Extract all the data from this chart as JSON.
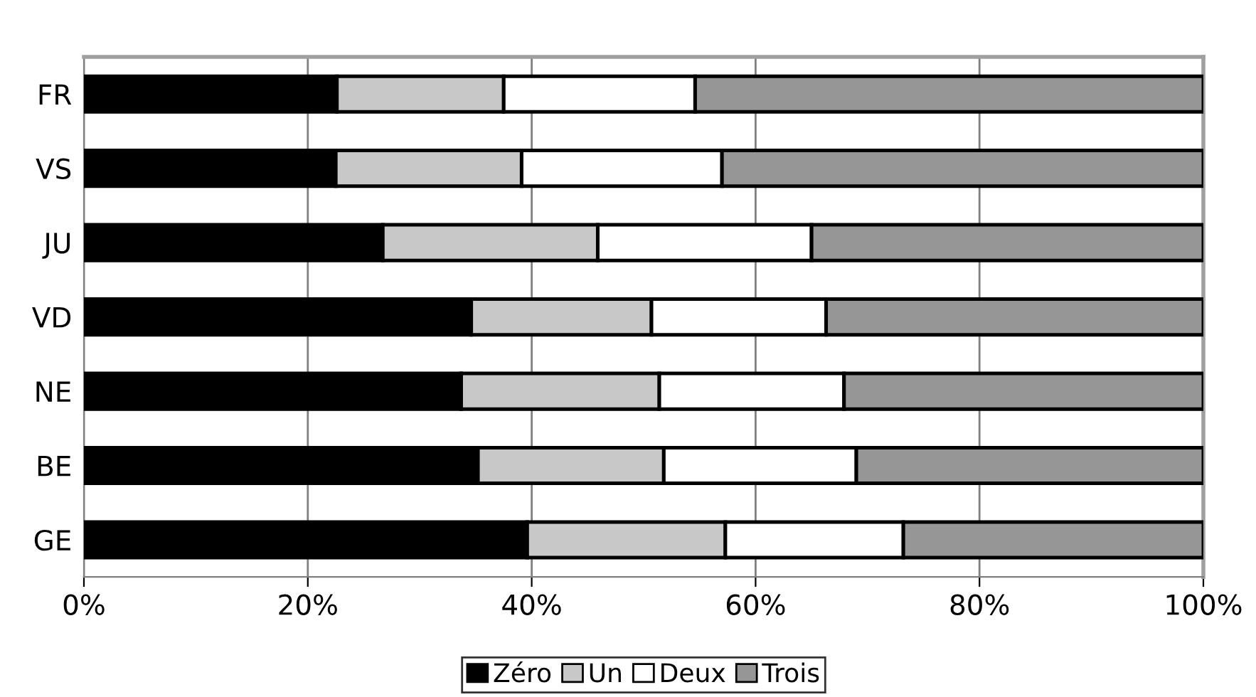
{
  "chart_data": {
    "type": "bar",
    "orientation": "horizontal",
    "stacked": true,
    "categories": [
      "FR",
      "VS",
      "JU",
      "VD",
      "NE",
      "BE",
      "GE"
    ],
    "series": [
      {
        "name": "Zéro",
        "color": "#000000",
        "values": [
          22.6,
          22.5,
          26.7,
          34.6,
          33.7,
          35.2,
          39.6
        ]
      },
      {
        "name": "Un",
        "color": "#c8c8c8",
        "values": [
          14.9,
          16.6,
          19.2,
          16.1,
          17.7,
          16.6,
          17.7
        ]
      },
      {
        "name": "Deux",
        "color": "#ffffff",
        "values": [
          17.1,
          17.9,
          19.1,
          15.6,
          16.5,
          17.2,
          15.9
        ]
      },
      {
        "name": "Trois",
        "color": "#969696",
        "values": [
          45.4,
          43.0,
          35.0,
          33.7,
          32.1,
          31.0,
          26.8
        ]
      }
    ],
    "xlim": [
      0,
      100
    ],
    "xticks": [
      {
        "value": 0,
        "label": "0%"
      },
      {
        "value": 20,
        "label": "20%"
      },
      {
        "value": 40,
        "label": "40%"
      },
      {
        "value": 60,
        "label": "60%"
      },
      {
        "value": 80,
        "label": "80%"
      },
      {
        "value": 100,
        "label": "100%"
      }
    ],
    "grid": "x",
    "legend": "bottom"
  }
}
